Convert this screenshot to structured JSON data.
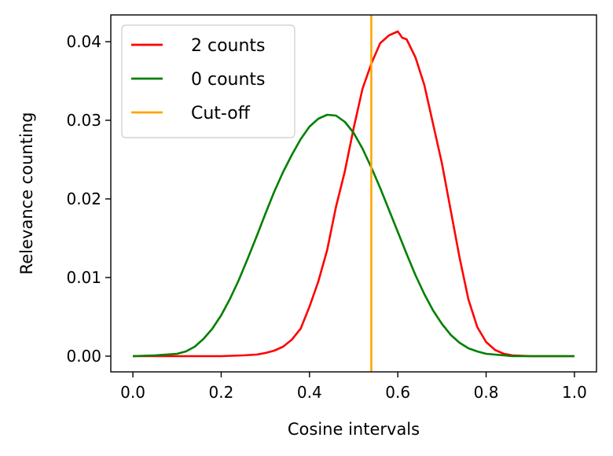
{
  "chart_data": {
    "type": "line",
    "title": "",
    "xlabel": "Cosine intervals",
    "ylabel": "Relevance counting",
    "xlim": [
      -0.05,
      1.05
    ],
    "ylim": [
      -0.002,
      0.0434
    ],
    "xticks": [
      "0.0",
      "0.2",
      "0.4",
      "0.6",
      "0.8",
      "1.0"
    ],
    "yticks": [
      "0.00",
      "0.01",
      "0.02",
      "0.03",
      "0.04"
    ],
    "grid": false,
    "legend_position": "top-left",
    "series": [
      {
        "name": "2 counts",
        "color": "#ff0000",
        "x": [
          0.0,
          0.05,
          0.1,
          0.15,
          0.2,
          0.25,
          0.28,
          0.3,
          0.32,
          0.34,
          0.36,
          0.38,
          0.4,
          0.42,
          0.44,
          0.46,
          0.48,
          0.5,
          0.52,
          0.54,
          0.56,
          0.58,
          0.6,
          0.61,
          0.62,
          0.64,
          0.66,
          0.68,
          0.7,
          0.72,
          0.74,
          0.76,
          0.78,
          0.8,
          0.82,
          0.84,
          0.86,
          0.9,
          0.95,
          1.0
        ],
        "y": [
          0.0,
          0.0,
          0.0,
          0.0,
          0.0,
          0.0001,
          0.0002,
          0.0004,
          0.0007,
          0.0012,
          0.0021,
          0.0035,
          0.0063,
          0.0095,
          0.0135,
          0.019,
          0.0235,
          0.029,
          0.034,
          0.0372,
          0.0398,
          0.0408,
          0.0413,
          0.0405,
          0.0403,
          0.038,
          0.0345,
          0.0295,
          0.0245,
          0.0185,
          0.0125,
          0.0072,
          0.0037,
          0.0018,
          0.0008,
          0.0003,
          0.0001,
          0.0,
          0.0,
          0.0
        ]
      },
      {
        "name": "0 counts",
        "color": "#008000",
        "x": [
          0.0,
          0.05,
          0.1,
          0.12,
          0.14,
          0.16,
          0.18,
          0.2,
          0.22,
          0.24,
          0.26,
          0.28,
          0.3,
          0.32,
          0.34,
          0.36,
          0.38,
          0.4,
          0.42,
          0.44,
          0.46,
          0.48,
          0.5,
          0.52,
          0.54,
          0.56,
          0.58,
          0.6,
          0.62,
          0.64,
          0.66,
          0.68,
          0.7,
          0.72,
          0.74,
          0.76,
          0.78,
          0.8,
          0.82,
          0.84,
          0.86,
          0.9,
          0.95,
          1.0
        ],
        "y": [
          0.0,
          0.0001,
          0.0003,
          0.0006,
          0.0012,
          0.0022,
          0.0035,
          0.0052,
          0.0073,
          0.0097,
          0.0124,
          0.0152,
          0.0181,
          0.0209,
          0.0234,
          0.0256,
          0.0276,
          0.0292,
          0.0302,
          0.0307,
          0.0306,
          0.0298,
          0.0284,
          0.0264,
          0.024,
          0.0214,
          0.0186,
          0.0158,
          0.013,
          0.0103,
          0.0079,
          0.0058,
          0.0041,
          0.0027,
          0.0017,
          0.001,
          0.0006,
          0.0003,
          0.0002,
          0.0001,
          0.0,
          0.0,
          0.0,
          0.0
        ]
      }
    ],
    "vlines": [
      {
        "name": "Cut-off",
        "x": 0.54,
        "color": "#ffa500"
      }
    ]
  }
}
